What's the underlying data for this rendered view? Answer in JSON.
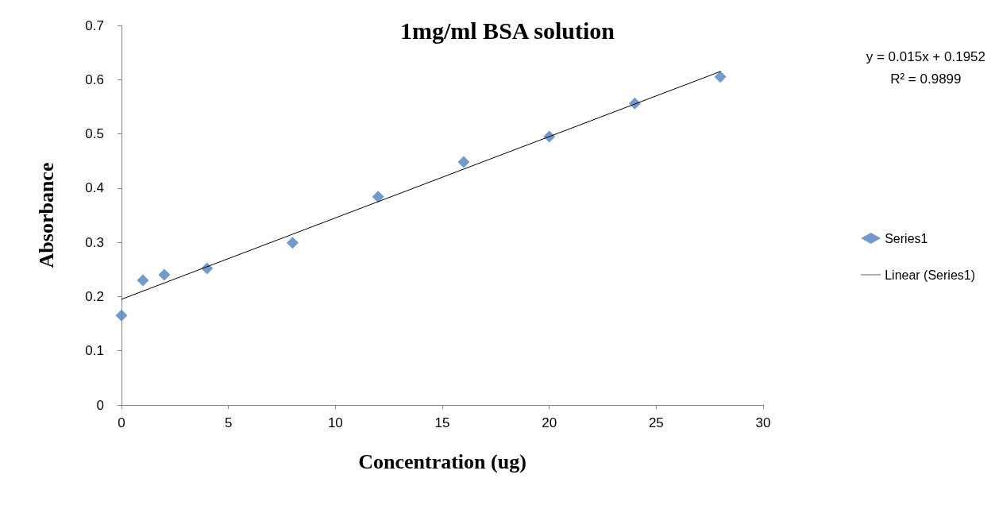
{
  "chart_data": {
    "type": "scatter",
    "title": "1mg/ml BSA solution",
    "xlabel": "Concentration (ug)",
    "ylabel": "Absorbance",
    "annotations": [
      "y = 0.015x + 0.1952",
      "R² = 0.9899"
    ],
    "x": [
      0,
      1,
      2,
      4,
      8,
      12,
      16,
      20,
      24,
      28
    ],
    "series": [
      {
        "name": "Series1",
        "color": "#4f81bd",
        "marker": "diamond",
        "values": [
          0.165,
          0.23,
          0.24,
          0.252,
          0.299,
          0.384,
          0.448,
          0.495,
          0.556,
          0.605
        ]
      },
      {
        "name": "Linear (Series1)",
        "type": "line",
        "color": "#000000",
        "marker": "none",
        "line_style": "solid",
        "x": [
          0,
          28
        ],
        "values": [
          0.195,
          0.615
        ]
      }
    ],
    "xlim": [
      0,
      30
    ],
    "xticks": [
      0,
      5,
      10,
      15,
      20,
      25,
      30
    ],
    "ylim": [
      0,
      0.7
    ],
    "yticks": [
      0,
      0.1,
      0.2,
      0.3,
      0.4,
      0.5,
      0.6,
      0.7
    ],
    "grid": false,
    "legend": "right"
  }
}
